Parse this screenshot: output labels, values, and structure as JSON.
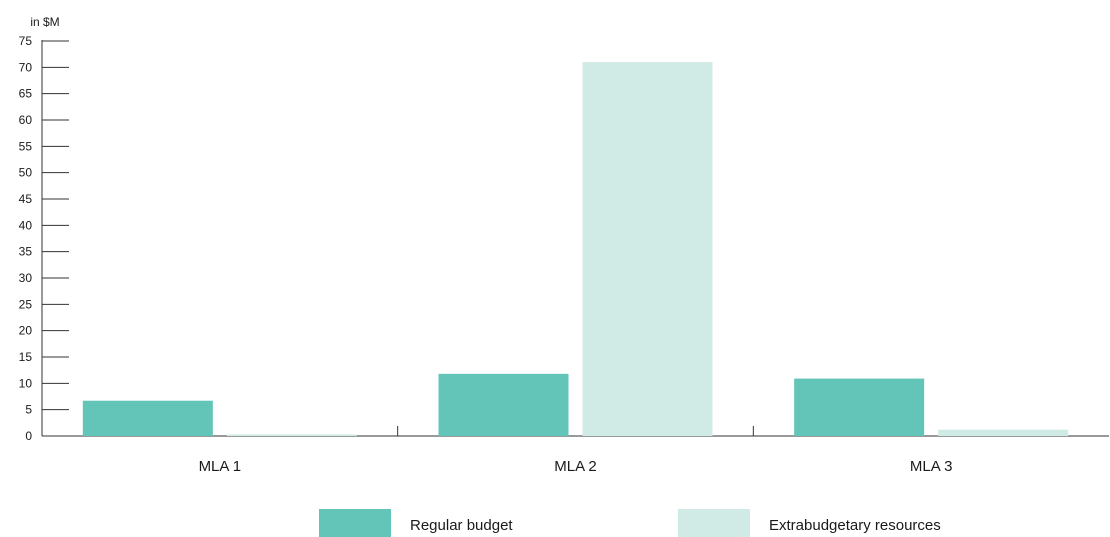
{
  "chart_data": {
    "type": "bar",
    "ylabel": "in $M",
    "ylim": [
      0,
      75
    ],
    "yticks": [
      0,
      5,
      10,
      15,
      20,
      25,
      30,
      35,
      40,
      45,
      50,
      55,
      60,
      65,
      70,
      75
    ],
    "categories": [
      "MLA 1",
      "MLA 2",
      "MLA 3"
    ],
    "series": [
      {
        "name": "Regular budget",
        "color": "#62c5b8",
        "values": [
          6.7,
          11.8,
          10.9
        ]
      },
      {
        "name": "Extrabudgetary resources",
        "color": "#d0ebe5",
        "values": [
          0.3,
          71.0,
          1.2
        ]
      }
    ],
    "legend_position": "bottom-center",
    "grid": false
  }
}
